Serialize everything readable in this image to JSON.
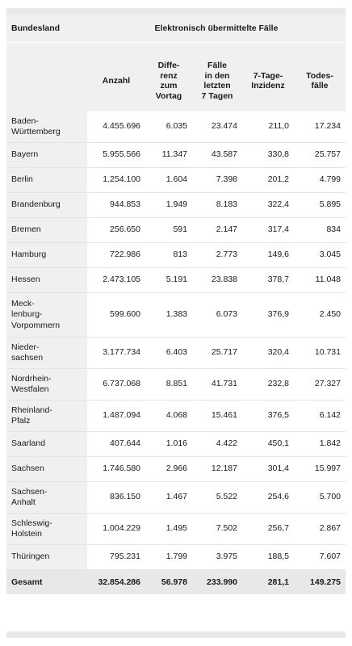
{
  "header": {
    "state_label": "Bundesland",
    "group_label": "Elektronisch übermittelte Fälle",
    "columns": [
      "Anzahl",
      "Differenz zum Vortag",
      "Fälle in den letzten 7 Tagen",
      "7-Tage-Inzidenz",
      "Todesfälle"
    ],
    "columns_display": [
      [
        "Anzahl"
      ],
      [
        "Diffe-",
        "renz",
        "zum",
        "Vortag"
      ],
      [
        "Fälle",
        "in den",
        "letzten",
        "7 Tagen"
      ],
      [
        "7-Tage-",
        "Inzidenz"
      ],
      [
        "Todes-",
        "fälle"
      ]
    ]
  },
  "rows": [
    {
      "state": "Baden-Württemberg",
      "state_display": [
        "Baden-",
        "Württemberg"
      ],
      "anzahl": "4.455.696",
      "differenz": "6.035",
      "faelle_7_tage": "23.474",
      "inzidenz": "211,0",
      "todesfaelle": "17.234"
    },
    {
      "state": "Bayern",
      "state_display": [
        "Bayern"
      ],
      "anzahl": "5.955.566",
      "differenz": "11.347",
      "faelle_7_tage": "43.587",
      "inzidenz": "330,8",
      "todesfaelle": "25.757"
    },
    {
      "state": "Berlin",
      "state_display": [
        "Berlin"
      ],
      "anzahl": "1.254.100",
      "differenz": "1.604",
      "faelle_7_tage": "7.398",
      "inzidenz": "201,2",
      "todesfaelle": "4.799"
    },
    {
      "state": "Brandenburg",
      "state_display": [
        "Brandenburg"
      ],
      "anzahl": "944.853",
      "differenz": "1.949",
      "faelle_7_tage": "8.183",
      "inzidenz": "322,4",
      "todesfaelle": "5.895"
    },
    {
      "state": "Bremen",
      "state_display": [
        "Bremen"
      ],
      "anzahl": "256.650",
      "differenz": "591",
      "faelle_7_tage": "2.147",
      "inzidenz": "317,4",
      "todesfaelle": "834"
    },
    {
      "state": "Hamburg",
      "state_display": [
        "Hamburg"
      ],
      "anzahl": "722.986",
      "differenz": "813",
      "faelle_7_tage": "2.773",
      "inzidenz": "149,6",
      "todesfaelle": "3.045"
    },
    {
      "state": "Hessen",
      "state_display": [
        "Hessen"
      ],
      "anzahl": "2.473.105",
      "differenz": "5.191",
      "faelle_7_tage": "23.838",
      "inzidenz": "378,7",
      "todesfaelle": "11.048"
    },
    {
      "state": "Mecklenburg-Vorpommern",
      "state_display": [
        "Meck-",
        "lenburg-",
        "Vorpommern"
      ],
      "anzahl": "599.600",
      "differenz": "1.383",
      "faelle_7_tage": "6.073",
      "inzidenz": "376,9",
      "todesfaelle": "2.450"
    },
    {
      "state": "Niedersachsen",
      "state_display": [
        "Nieder-",
        "sachsen"
      ],
      "anzahl": "3.177.734",
      "differenz": "6.403",
      "faelle_7_tage": "25.717",
      "inzidenz": "320,4",
      "todesfaelle": "10.731"
    },
    {
      "state": "Nordrhein-Westfalen",
      "state_display": [
        "Nordrhein-",
        "Westfalen"
      ],
      "anzahl": "6.737.068",
      "differenz": "8.851",
      "faelle_7_tage": "41.731",
      "inzidenz": "232,8",
      "todesfaelle": "27.327"
    },
    {
      "state": "Rheinland-Pfalz",
      "state_display": [
        "Rheinland-",
        "Pfalz"
      ],
      "anzahl": "1.487.094",
      "differenz": "4.068",
      "faelle_7_tage": "15.461",
      "inzidenz": "376,5",
      "todesfaelle": "6.142"
    },
    {
      "state": "Saarland",
      "state_display": [
        "Saarland"
      ],
      "anzahl": "407.644",
      "differenz": "1.016",
      "faelle_7_tage": "4.422",
      "inzidenz": "450,1",
      "todesfaelle": "1.842"
    },
    {
      "state": "Sachsen",
      "state_display": [
        "Sachsen"
      ],
      "anzahl": "1.746.580",
      "differenz": "2.966",
      "faelle_7_tage": "12.187",
      "inzidenz": "301,4",
      "todesfaelle": "15.997"
    },
    {
      "state": "Sachsen-Anhalt",
      "state_display": [
        "Sachsen-",
        "Anhalt"
      ],
      "anzahl": "836.150",
      "differenz": "1.467",
      "faelle_7_tage": "5.522",
      "inzidenz": "254,6",
      "todesfaelle": "5.700"
    },
    {
      "state": "Schleswig-Holstein",
      "state_display": [
        "Schleswig-",
        "Holstein"
      ],
      "anzahl": "1.004.229",
      "differenz": "1.495",
      "faelle_7_tage": "7.502",
      "inzidenz": "256,7",
      "todesfaelle": "2.867"
    },
    {
      "state": "Thüringen",
      "state_display": [
        "Thüringen"
      ],
      "anzahl": "795.231",
      "differenz": "1.799",
      "faelle_7_tage": "3.975",
      "inzidenz": "188,5",
      "todesfaelle": "7.607"
    }
  ],
  "total": {
    "state": "Gesamt",
    "anzahl": "32.854.286",
    "differenz": "56.978",
    "faelle_7_tage": "233.990",
    "inzidenz": "281,1",
    "todesfaelle": "149.275"
  },
  "colors": {
    "header_bg": "#f0f0f0",
    "strip_bg": "#e8e8e8",
    "row_border": "#e4e4e4",
    "text": "#1a1a1a"
  }
}
